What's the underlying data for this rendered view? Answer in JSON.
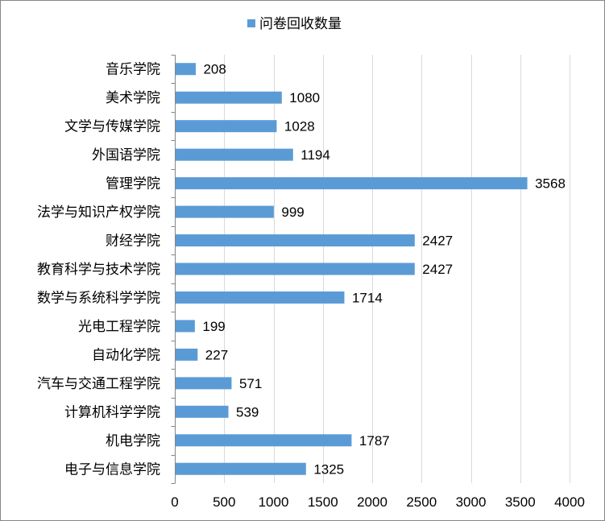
{
  "chart_data": {
    "type": "bar",
    "orientation": "horizontal",
    "categories": [
      "音乐学院",
      "美术学院",
      "文学与传媒学院",
      "外国语学院",
      "管理学院",
      "法学与知识产权学院",
      "财经学院",
      "教育科学与技术学院",
      "数学与系统科学学院",
      "光电工程学院",
      "自动化学院",
      "汽车与交通工程学院",
      "计算机科学学院",
      "机电学院",
      "电子与信息学院"
    ],
    "series": [
      {
        "name": "问卷回收数量",
        "color": "#5B9BD5",
        "values": [
          208,
          1080,
          1028,
          1194,
          3568,
          999,
          2427,
          2427,
          1714,
          199,
          227,
          571,
          539,
          1787,
          1325
        ]
      }
    ],
    "xlim": [
      0,
      4000
    ],
    "xticks": [
      0,
      500,
      1000,
      1500,
      2000,
      2500,
      3000,
      3500,
      4000
    ],
    "grid": "vertical",
    "legend": "top",
    "data_labels": true
  }
}
